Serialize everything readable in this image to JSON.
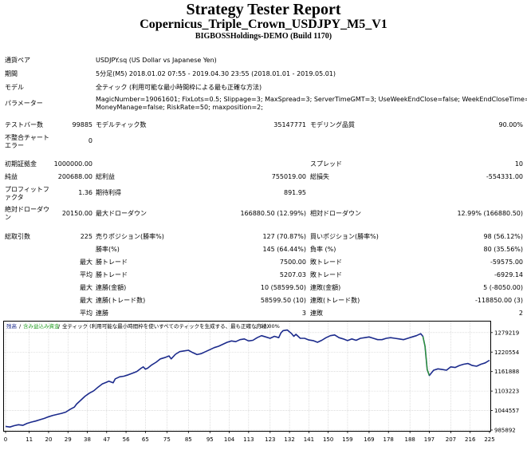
{
  "header": {
    "title": "Strategy Tester Report",
    "subtitle": "Copernicus_Triple_Crown_USDJPY_M5_V1",
    "company": "BIGBOSSHoldings-DEMO (Build 1170)"
  },
  "info": {
    "symbol_label": "通貨ペア",
    "symbol_value": "USDJPY.sq (US Dollar vs Japanese Yen)",
    "period_label": "期間",
    "period_value": "5分足(M5) 2018.01.02 07:55 - 2019.04.30 23:55 (2018.01.01 - 2019.05.01)",
    "model_label": "モデル",
    "model_value": "全ティック (利用可能な最小時間枠による最も正確な方法)",
    "params_label": "パラメーター",
    "params_line1": "MagicNumber=19061601; FixLots=0.5; Slippage=3; MaxSpread=3; ServerTimeGMT=3; UseWeekEndClose=false; WeekEndCloseTime=4;",
    "params_line2": "MoneyManage=false; RiskRate=50; maxposition=2;"
  },
  "stats": {
    "bars_label": "テストバー数",
    "bars_value": "99885",
    "ticks_label": "モデルティック数",
    "ticks_value": "35147771",
    "quality_label": "モデリング品質",
    "quality_value": "90.00%",
    "mismatch_label": "不整合チャートエラー",
    "mismatch_value": "0",
    "deposit_label": "初期証拠金",
    "deposit_value": "1000000.00",
    "spread_label": "スプレッド",
    "spread_value": "10",
    "net_label": "純益",
    "net_value": "200688.00",
    "gross_profit_label": "総利益",
    "gross_profit_value": "755019.00",
    "gross_loss_label": "総損失",
    "gross_loss_value": "-554331.00",
    "pf_label": "プロフィットファクタ",
    "pf_value": "1.36",
    "payoff_label": "期待利得",
    "payoff_value": "891.95",
    "abs_dd_label": "絶対ドローダウン",
    "abs_dd_value": "20150.00",
    "max_dd_label": "最大ドローダウン",
    "max_dd_value": "166880.50 (12.99%)",
    "rel_dd_label": "相対ドローダウン",
    "rel_dd_value": "12.99% (166880.50)",
    "trades_label": "総取引数",
    "trades_value": "225",
    "short_label": "売りポジション(勝率%)",
    "short_value": "127 (70.87%)",
    "long_label": "買いポジション(勝率%)",
    "long_value": "98 (56.12%)",
    "win_label": "勝率(%)",
    "win_value": "145 (64.44%)",
    "loss_label": "負率 (%)",
    "loss_value": "80 (35.56%)",
    "max_label": "最大",
    "max_win_label": "勝トレード",
    "max_win_value": "7500.00",
    "max_loss_label": "敗トレード",
    "max_loss_value": "-59575.00",
    "avg_label": "平均",
    "avg_win_label": "勝トレード",
    "avg_win_value": "5207.03",
    "avg_loss_label": "敗トレード",
    "avg_loss_value": "-6929.14",
    "max2_label": "最大",
    "cons_win_money_label": "連勝(金額)",
    "cons_win_money_value": "10 (58599.50)",
    "cons_loss_money_label": "連敗(金額)",
    "cons_loss_money_value": "5 (-8050.00)",
    "max3_label": "最大",
    "cons_win_trades_label": "連勝(トレード数)",
    "cons_win_trades_value": "58599.50 (10)",
    "cons_loss_trades_label": "連敗(トレード数)",
    "cons_loss_trades_value": "-118850.00 (3)",
    "avg2_label": "平均",
    "avg_cons_win_label": "連勝",
    "avg_cons_win_value": "3",
    "avg_cons_loss_label": "連敗",
    "avg_cons_loss_value": "2"
  },
  "chart_data": {
    "type": "line",
    "legend_balance": "残高",
    "legend_sep1": "/",
    "legend_equity": "含み益込み資金",
    "legend_sep2": "/",
    "legend_model": "全ティック (利用可能な最小時間枠を使いすべてのティックを生成する、最も正確な方法)",
    "legend_sep3": "/",
    "legend_quality": "90.00%",
    "colors": {
      "balance": "#1c2b8c",
      "equity": "#2aa12a",
      "grid": "#c8c8c8",
      "border": "#000000"
    },
    "x_ticks": [
      "0",
      "11",
      "20",
      "29",
      "38",
      "47",
      "56",
      "65",
      "75",
      "85",
      "95",
      "104",
      "113",
      "123",
      "132",
      "141",
      "150",
      "159",
      "169",
      "178",
      "188",
      "197",
      "207",
      "216",
      "225"
    ],
    "y_ticks": [
      985892,
      1044557,
      1103223,
      1161888,
      1220554,
      1279219
    ],
    "y_tick_labels": [
      "985892",
      "1044557",
      "1103223",
      "1161888",
      "1220554",
      "1279219"
    ],
    "xlim": [
      0,
      225
    ],
    "ylim": [
      985892,
      1310000
    ],
    "series": [
      {
        "values": [
          [
            0,
            997000
          ],
          [
            2,
            995000
          ],
          [
            4,
            999000
          ],
          [
            6,
            1002000
          ],
          [
            8,
            1000000
          ],
          [
            10,
            1006000
          ],
          [
            12,
            1010000
          ],
          [
            14,
            1013000
          ],
          [
            16,
            1017000
          ],
          [
            18,
            1021000
          ],
          [
            20,
            1026000
          ],
          [
            22,
            1030000
          ],
          [
            24,
            1033000
          ],
          [
            26,
            1036000
          ],
          [
            28,
            1040000
          ],
          [
            30,
            1048000
          ],
          [
            32,
            1055000
          ],
          [
            33,
            1064000
          ],
          [
            35,
            1076000
          ],
          [
            37,
            1088000
          ],
          [
            39,
            1097000
          ],
          [
            41,
            1104000
          ],
          [
            43,
            1115000
          ],
          [
            45,
            1125000
          ],
          [
            47,
            1130000
          ],
          [
            48,
            1133000
          ],
          [
            50,
            1128000
          ],
          [
            51,
            1140000
          ],
          [
            53,
            1146000
          ],
          [
            55,
            1148000
          ],
          [
            57,
            1152000
          ],
          [
            59,
            1157000
          ],
          [
            61,
            1162000
          ],
          [
            63,
            1172000
          ],
          [
            64,
            1176000
          ],
          [
            65,
            1169000
          ],
          [
            66,
            1172000
          ],
          [
            68,
            1182000
          ],
          [
            70,
            1190000
          ],
          [
            72,
            1200000
          ],
          [
            74,
            1204000
          ],
          [
            76,
            1209000
          ],
          [
            77,
            1200000
          ],
          [
            79,
            1214000
          ],
          [
            81,
            1222000
          ],
          [
            83,
            1224000
          ],
          [
            85,
            1226000
          ],
          [
            87,
            1219000
          ],
          [
            89,
            1213000
          ],
          [
            91,
            1216000
          ],
          [
            93,
            1222000
          ],
          [
            95,
            1228000
          ],
          [
            97,
            1234000
          ],
          [
            99,
            1238000
          ],
          [
            101,
            1244000
          ],
          [
            103,
            1250000
          ],
          [
            105,
            1254000
          ],
          [
            107,
            1252000
          ],
          [
            109,
            1258000
          ],
          [
            111,
            1260000
          ],
          [
            113,
            1254000
          ],
          [
            115,
            1256000
          ],
          [
            117,
            1264000
          ],
          [
            119,
            1270000
          ],
          [
            121,
            1266000
          ],
          [
            123,
            1262000
          ],
          [
            125,
            1268000
          ],
          [
            127,
            1264000
          ],
          [
            128,
            1278000
          ],
          [
            129,
            1285000
          ],
          [
            131,
            1287000
          ],
          [
            133,
            1276000
          ],
          [
            134,
            1268000
          ],
          [
            135,
            1274000
          ],
          [
            137,
            1262000
          ],
          [
            139,
            1262000
          ],
          [
            141,
            1257000
          ],
          [
            143,
            1255000
          ],
          [
            145,
            1250000
          ],
          [
            147,
            1256000
          ],
          [
            149,
            1264000
          ],
          [
            151,
            1270000
          ],
          [
            153,
            1272000
          ],
          [
            155,
            1264000
          ],
          [
            157,
            1260000
          ],
          [
            159,
            1255000
          ],
          [
            161,
            1260000
          ],
          [
            163,
            1256000
          ],
          [
            165,
            1262000
          ],
          [
            167,
            1264000
          ],
          [
            169,
            1266000
          ],
          [
            171,
            1262000
          ],
          [
            173,
            1258000
          ],
          [
            175,
            1258000
          ],
          [
            177,
            1262000
          ],
          [
            179,
            1264000
          ],
          [
            181,
            1262000
          ],
          [
            183,
            1260000
          ],
          [
            185,
            1258000
          ],
          [
            187,
            1262000
          ],
          [
            189,
            1266000
          ],
          [
            191,
            1270000
          ],
          [
            193,
            1276000
          ],
          [
            194,
            1268000
          ],
          [
            195,
            1238000
          ],
          [
            196,
            1168000
          ],
          [
            197,
            1150000
          ],
          [
            199,
            1166000
          ],
          [
            201,
            1170000
          ],
          [
            203,
            1168000
          ],
          [
            205,
            1166000
          ],
          [
            207,
            1176000
          ],
          [
            209,
            1174000
          ],
          [
            211,
            1180000
          ],
          [
            213,
            1184000
          ],
          [
            215,
            1186000
          ],
          [
            217,
            1180000
          ],
          [
            219,
            1178000
          ],
          [
            221,
            1184000
          ],
          [
            223,
            1188000
          ],
          [
            225,
            1196000
          ]
        ]
      }
    ],
    "equity_segment": [
      [
        194,
        1268000
      ],
      [
        195,
        1238000
      ],
      [
        196,
        1168000
      ],
      [
        197,
        1150000
      ]
    ]
  }
}
